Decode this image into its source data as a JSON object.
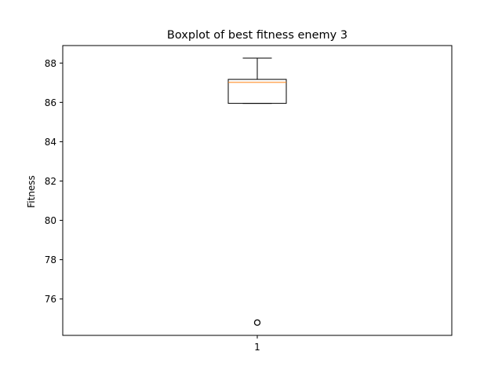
{
  "chart_data": {
    "type": "box",
    "title": "Boxplot of best fitness enemy 3",
    "xlabel": "",
    "ylabel": "Fitness",
    "categories": [
      "1"
    ],
    "series": [
      {
        "whisker_low": 85.95,
        "q1": 85.95,
        "median": 87.02,
        "q3": 87.17,
        "whisker_high": 88.25,
        "outliers": [
          74.8
        ]
      }
    ],
    "ylim": [
      74.15,
      88.89
    ],
    "yticks": [
      76,
      78,
      80,
      82,
      84,
      86,
      88
    ],
    "grid": false,
    "colors": {
      "box": "#000000",
      "median": "#ff7f0e",
      "outlier_edge": "#000000"
    }
  }
}
